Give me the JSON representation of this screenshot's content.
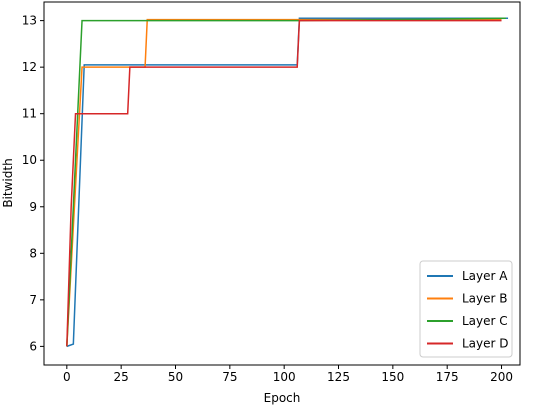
{
  "chart_data": {
    "type": "line",
    "x_label": "Epoch",
    "y_label": "Bitwidth",
    "xlim": [
      -10.5,
      208.5
    ],
    "ylim": [
      5.6,
      13.4
    ],
    "xticks": [
      0,
      25,
      50,
      75,
      100,
      125,
      150,
      175,
      200
    ],
    "yticks": [
      6,
      7,
      8,
      9,
      10,
      11,
      12,
      13
    ],
    "grid": false,
    "legend": "lower right",
    "series": [
      {
        "name": "Layer A",
        "color": "#1f77b4",
        "x": [
          0,
          3,
          8,
          106,
          107,
          203
        ],
        "values": [
          6,
          6.05,
          12.05,
          12.05,
          13.05,
          13.05
        ]
      },
      {
        "name": "Layer B",
        "color": "#ff7f0e",
        "x": [
          0,
          7,
          36,
          37,
          200
        ],
        "values": [
          6,
          12,
          12,
          13.02,
          13.02
        ]
      },
      {
        "name": "Layer C",
        "color": "#2ca02c",
        "x": [
          0,
          7,
          107,
          202
        ],
        "values": [
          6,
          13,
          13,
          13.05
        ]
      },
      {
        "name": "Layer D",
        "color": "#d62728",
        "x": [
          0,
          2,
          4,
          28,
          29,
          106,
          107,
          200
        ],
        "values": [
          6,
          9,
          11,
          11,
          12,
          12,
          13,
          13
        ]
      }
    ]
  }
}
